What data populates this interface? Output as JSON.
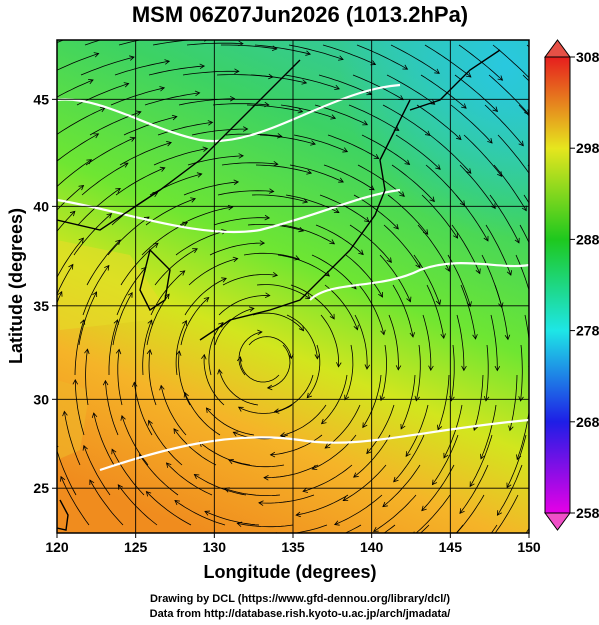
{
  "title": "MSM 06Z07Jun2026 (1013.2hPa)",
  "x_axis": {
    "label": "Longitude (degrees)",
    "range": [
      120,
      150
    ],
    "ticks": [
      120,
      125,
      130,
      135,
      140,
      145,
      150
    ]
  },
  "y_axis": {
    "label": "Latitude  (degrees)",
    "range": [
      22.4,
      47.6
    ],
    "ticks": [
      25,
      30,
      35,
      40,
      45
    ]
  },
  "colorbar": {
    "range": [
      258,
      308
    ],
    "ticks": [
      258,
      268,
      278,
      288,
      298,
      308
    ]
  },
  "credits": [
    "Drawing by DCL (https://www.gfd-dennou.org/library/dcl/)",
    "Data from http://database.rish.kyoto-u.ac.jp/arch/jmadata/"
  ]
}
